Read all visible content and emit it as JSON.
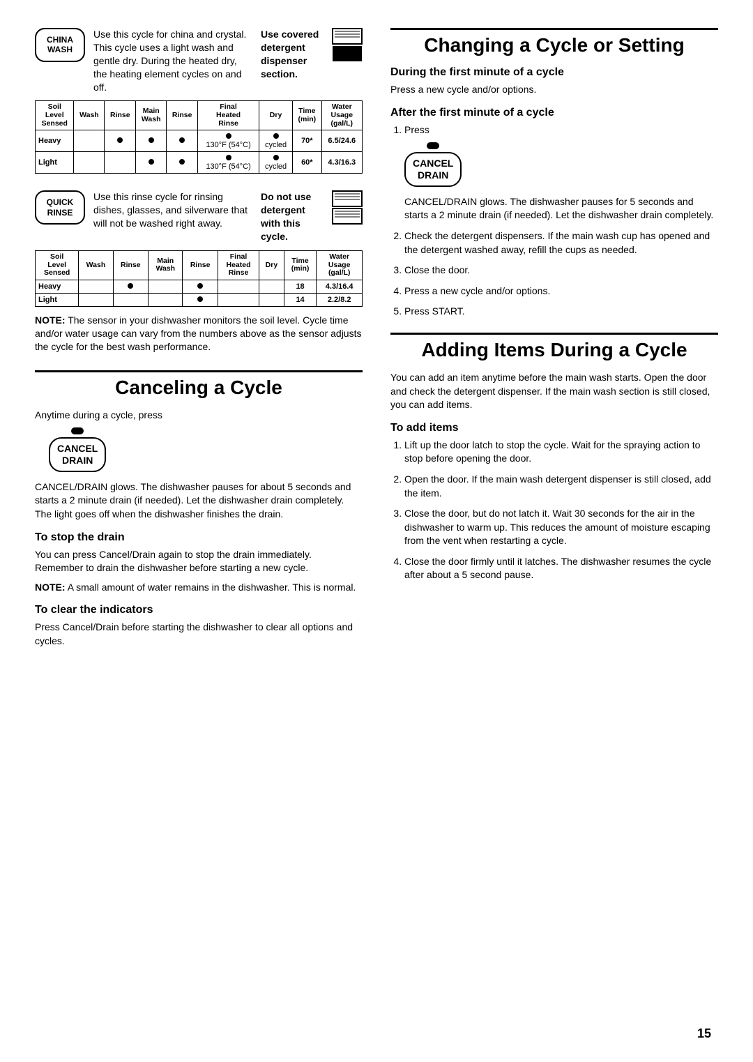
{
  "china_wash": {
    "button": "CHINA\nWASH",
    "desc": "Use this cycle for china and crystal. This cycle uses a light wash and gentle dry. During the heated dry, the heating element cycles on and off.",
    "dispenser_label": "Use covered detergent dispenser section.",
    "table": {
      "headers": [
        "Soil Level Sensed",
        "Wash",
        "Rinse",
        "Main Wash",
        "Rinse",
        "Final Heated Rinse",
        "Dry",
        "Time (min)",
        "Water Usage (gal/L)"
      ],
      "rows": [
        {
          "label": "Heavy",
          "wash": false,
          "rinse1": true,
          "main": true,
          "rinse2": true,
          "final": "130°F (54°C)",
          "final_dot": true,
          "dry": "cycled",
          "dry_dot": true,
          "time": "70*",
          "water": "6.5/24.6"
        },
        {
          "label": "Light",
          "wash": false,
          "rinse1": false,
          "main": true,
          "rinse2": true,
          "final": "130°F (54°C)",
          "final_dot": true,
          "dry": "cycled",
          "dry_dot": true,
          "time": "60*",
          "water": "4.3/16.3"
        }
      ]
    }
  },
  "quick_rinse": {
    "button": "QUICK\nRINSE",
    "desc": "Use this rinse cycle for rinsing dishes, glasses, and silverware that will not be washed right away.",
    "dispenser_label": "Do not use detergent with this cycle.",
    "table": {
      "headers": [
        "Soil Level Sensed",
        "Wash",
        "Rinse",
        "Main Wash",
        "Rinse",
        "Final Heated Rinse",
        "Dry",
        "Time (min)",
        "Water Usage (gal/L)"
      ],
      "rows": [
        {
          "label": "Heavy",
          "wash": false,
          "rinse1": true,
          "main": false,
          "rinse2": true,
          "final": "",
          "final_dot": false,
          "dry": "",
          "dry_dot": false,
          "time": "18",
          "water": "4.3/16.4"
        },
        {
          "label": "Light",
          "wash": false,
          "rinse1": false,
          "main": false,
          "rinse2": true,
          "final": "",
          "final_dot": false,
          "dry": "",
          "dry_dot": false,
          "time": "14",
          "water": "2.2/8.2"
        }
      ]
    },
    "note": "NOTE: The sensor in your dishwasher monitors the soil level. Cycle time and/or water usage can vary from the numbers above as the sensor adjusts the cycle for the best wash performance."
  },
  "canceling": {
    "title": "Canceling a Cycle",
    "intro": "Anytime during a cycle, press",
    "btn_top": "CANCEL",
    "btn_bot": "DRAIN",
    "body": "CANCEL/DRAIN glows. The dishwasher pauses for about 5 seconds and starts a 2 minute drain (if needed). Let the dishwasher drain completely. The light goes off when the dishwasher finishes the drain.",
    "stop_h": "To stop the drain",
    "stop_p1": "You can press Cancel/Drain again to stop the drain immediately. Remember to drain the dishwasher before starting a new cycle.",
    "stop_p2": "NOTE: A small amount of water remains in the dishwasher. This is normal.",
    "clear_h": "To clear the indicators",
    "clear_p": "Press Cancel/Drain before starting the dishwasher to clear all options and cycles."
  },
  "changing": {
    "title": "Changing a Cycle or Setting",
    "during_h": "During the first minute of a cycle",
    "during_p": "Press a new cycle and/or options.",
    "after_h": "After the first minute of a cycle",
    "step1": "Press",
    "btn_top": "CANCEL",
    "btn_bot": "DRAIN",
    "step1_body": "CANCEL/DRAIN glows. The dishwasher pauses for 5 seconds and starts a 2 minute drain (if needed). Let the dishwasher drain completely.",
    "step2": "Check the detergent dispensers. If the main wash cup has opened and the detergent washed away, refill the cups as needed.",
    "step3": "Close the door.",
    "step4": "Press a new cycle and/or options.",
    "step5": "Press START."
  },
  "adding": {
    "title": "Adding Items During a Cycle",
    "intro": "You can add an item anytime before the main wash starts. Open the door and check the detergent dispenser. If the main wash section is still closed, you can add items.",
    "sub_h": "To add items",
    "s1": "Lift up the door latch to stop the cycle. Wait for the spraying action to stop before opening the door.",
    "s2": "Open the door. If the main wash detergent dispenser is still closed, add the item.",
    "s3": "Close the door, but do not latch it. Wait 30 seconds for the air in the dishwasher to warm up. This reduces the amount of moisture escaping from the vent when restarting a cycle.",
    "s4": "Close the door firmly until it latches. The dishwasher resumes the cycle after about a 5 second pause."
  },
  "page_number": "15"
}
